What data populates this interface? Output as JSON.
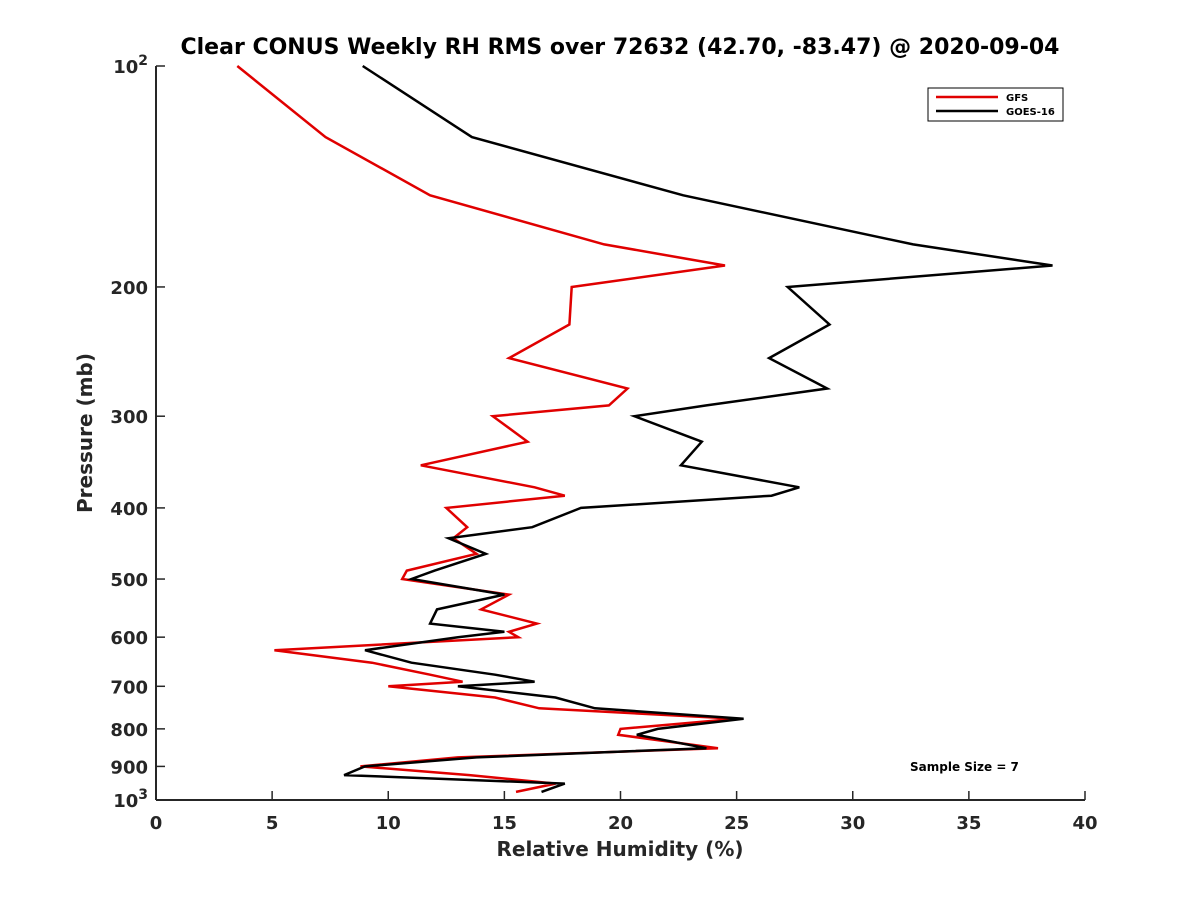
{
  "chart_data": {
    "type": "line",
    "title": "Clear CONUS Weekly RH RMS over 72632 (42.70, -83.47) @ 2020-09-04",
    "xlabel": "Relative Humidity (%)",
    "ylabel": "Pressure (mb)",
    "xlim": [
      0,
      40
    ],
    "ylim": [
      1000,
      100
    ],
    "y_scale": "log",
    "y_reversed": true,
    "grid": false,
    "legend_position": "top-right",
    "x_ticks": [
      0,
      5,
      10,
      15,
      20,
      25,
      30,
      35,
      40
    ],
    "x_tick_labels": [
      "0",
      "5",
      "10",
      "15",
      "20",
      "25",
      "30",
      "35",
      "40"
    ],
    "y_ticks": [
      100,
      200,
      300,
      400,
      500,
      600,
      700,
      800,
      900,
      1000
    ],
    "y_tick_labels": [
      {
        "base": "10",
        "exp": "2"
      },
      {
        "base": "200",
        "exp": ""
      },
      {
        "base": "300",
        "exp": ""
      },
      {
        "base": "400",
        "exp": ""
      },
      {
        "base": "500",
        "exp": ""
      },
      {
        "base": "600",
        "exp": ""
      },
      {
        "base": "700",
        "exp": ""
      },
      {
        "base": "800",
        "exp": ""
      },
      {
        "base": "900",
        "exp": ""
      },
      {
        "base": "10",
        "exp": "3"
      }
    ],
    "series": [
      {
        "name": "GFS",
        "color": "#e00000",
        "points": [
          {
            "x": 3.5,
            "y": 100
          },
          {
            "x": 7.3,
            "y": 125
          },
          {
            "x": 11.8,
            "y": 150
          },
          {
            "x": 19.3,
            "y": 175
          },
          {
            "x": 24.5,
            "y": 187
          },
          {
            "x": 17.9,
            "y": 200
          },
          {
            "x": 17.8,
            "y": 225
          },
          {
            "x": 15.2,
            "y": 250
          },
          {
            "x": 20.3,
            "y": 275
          },
          {
            "x": 19.5,
            "y": 290
          },
          {
            "x": 14.5,
            "y": 300
          },
          {
            "x": 16.0,
            "y": 325
          },
          {
            "x": 11.4,
            "y": 350
          },
          {
            "x": 16.3,
            "y": 375
          },
          {
            "x": 17.6,
            "y": 385
          },
          {
            "x": 12.5,
            "y": 400
          },
          {
            "x": 13.4,
            "y": 425
          },
          {
            "x": 12.8,
            "y": 440
          },
          {
            "x": 13.8,
            "y": 462
          },
          {
            "x": 10.8,
            "y": 487
          },
          {
            "x": 10.6,
            "y": 500
          },
          {
            "x": 15.2,
            "y": 525
          },
          {
            "x": 14.0,
            "y": 550
          },
          {
            "x": 16.4,
            "y": 575
          },
          {
            "x": 15.2,
            "y": 590
          },
          {
            "x": 15.6,
            "y": 600
          },
          {
            "x": 5.1,
            "y": 625
          },
          {
            "x": 9.3,
            "y": 650
          },
          {
            "x": 11.8,
            "y": 675
          },
          {
            "x": 13.2,
            "y": 690
          },
          {
            "x": 10.0,
            "y": 700
          },
          {
            "x": 14.6,
            "y": 725
          },
          {
            "x": 16.5,
            "y": 750
          },
          {
            "x": 25.0,
            "y": 775
          },
          {
            "x": 20.0,
            "y": 800
          },
          {
            "x": 19.9,
            "y": 815
          },
          {
            "x": 24.2,
            "y": 850
          },
          {
            "x": 13.0,
            "y": 875
          },
          {
            "x": 8.8,
            "y": 900
          },
          {
            "x": 13.5,
            "y": 925
          },
          {
            "x": 17.2,
            "y": 950
          },
          {
            "x": 15.5,
            "y": 975
          }
        ]
      },
      {
        "name": "GOES-16",
        "color": "#000000",
        "points": [
          {
            "x": 8.9,
            "y": 100
          },
          {
            "x": 13.6,
            "y": 125
          },
          {
            "x": 22.7,
            "y": 150
          },
          {
            "x": 32.6,
            "y": 175
          },
          {
            "x": 38.6,
            "y": 187
          },
          {
            "x": 27.2,
            "y": 200
          },
          {
            "x": 29.0,
            "y": 225
          },
          {
            "x": 26.4,
            "y": 250
          },
          {
            "x": 28.9,
            "y": 275
          },
          {
            "x": 23.7,
            "y": 290
          },
          {
            "x": 20.6,
            "y": 300
          },
          {
            "x": 23.5,
            "y": 325
          },
          {
            "x": 22.6,
            "y": 350
          },
          {
            "x": 27.7,
            "y": 375
          },
          {
            "x": 26.5,
            "y": 385
          },
          {
            "x": 18.3,
            "y": 400
          },
          {
            "x": 16.2,
            "y": 425
          },
          {
            "x": 12.6,
            "y": 440
          },
          {
            "x": 14.2,
            "y": 462
          },
          {
            "x": 12.0,
            "y": 487
          },
          {
            "x": 11.0,
            "y": 500
          },
          {
            "x": 15.0,
            "y": 525
          },
          {
            "x": 12.1,
            "y": 550
          },
          {
            "x": 11.8,
            "y": 575
          },
          {
            "x": 15.0,
            "y": 590
          },
          {
            "x": 13.0,
            "y": 600
          },
          {
            "x": 9.0,
            "y": 625
          },
          {
            "x": 11.0,
            "y": 650
          },
          {
            "x": 14.6,
            "y": 675
          },
          {
            "x": 16.3,
            "y": 690
          },
          {
            "x": 13.0,
            "y": 700
          },
          {
            "x": 17.2,
            "y": 725
          },
          {
            "x": 18.9,
            "y": 750
          },
          {
            "x": 25.3,
            "y": 775
          },
          {
            "x": 21.6,
            "y": 800
          },
          {
            "x": 20.7,
            "y": 815
          },
          {
            "x": 23.7,
            "y": 850
          },
          {
            "x": 13.8,
            "y": 875
          },
          {
            "x": 9.0,
            "y": 900
          },
          {
            "x": 8.1,
            "y": 925
          },
          {
            "x": 17.6,
            "y": 950
          },
          {
            "x": 16.6,
            "y": 975
          }
        ]
      }
    ],
    "annotation": "Sample Size = 7"
  }
}
